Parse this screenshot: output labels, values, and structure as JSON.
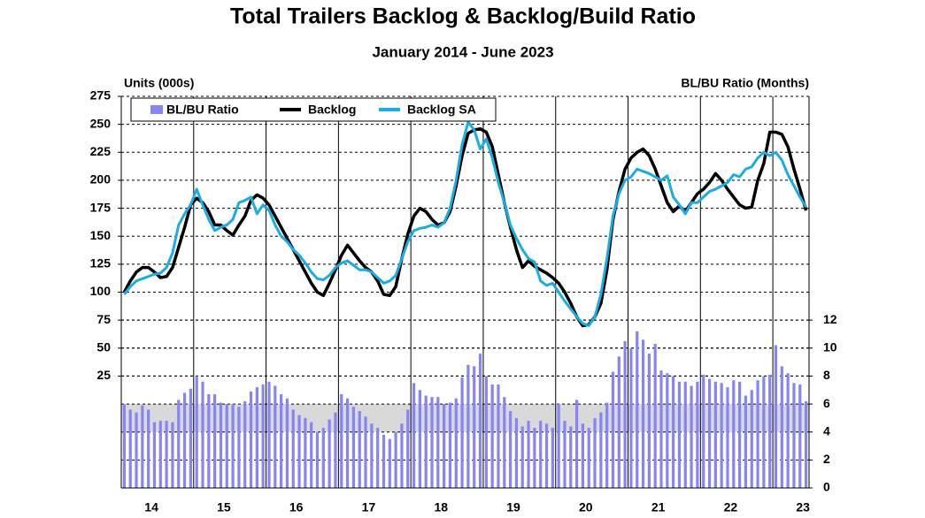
{
  "chart_data": {
    "type": "combo",
    "title": "Total Trailers Backlog & Backlog/Build Ratio",
    "subtitle": "January 2014 - June 2023",
    "y_label": "Units (000s)",
    "y2_label": "BL/BU Ratio (Months)",
    "categories": [
      null,
      null,
      null,
      null,
      null,
      "14",
      null,
      null,
      null,
      null,
      null,
      null,
      null,
      null,
      null,
      null,
      null,
      "15",
      null,
      null,
      null,
      null,
      null,
      null,
      null,
      null,
      null,
      null,
      null,
      "16",
      null,
      null,
      null,
      null,
      null,
      null,
      null,
      null,
      null,
      null,
      null,
      "17",
      null,
      null,
      null,
      null,
      null,
      null,
      null,
      null,
      null,
      null,
      null,
      "18",
      null,
      null,
      null,
      null,
      null,
      null,
      null,
      null,
      null,
      null,
      null,
      "19",
      null,
      null,
      null,
      null,
      null,
      null,
      null,
      null,
      null,
      null,
      null,
      "20",
      null,
      null,
      null,
      null,
      null,
      null,
      null,
      null,
      null,
      null,
      null,
      "21",
      null,
      null,
      null,
      null,
      null,
      null,
      null,
      null,
      null,
      null,
      null,
      "22",
      null,
      null,
      null,
      null,
      null,
      null,
      null,
      null,
      null,
      null,
      null,
      "23"
    ],
    "ylim": [
      -75,
      275
    ],
    "yticks": [
      25,
      50,
      75,
      100,
      125,
      150,
      175,
      200,
      225,
      250,
      275
    ],
    "y2lim": [
      0,
      28
    ],
    "y2ticks": [
      0,
      2,
      4,
      6,
      8,
      10,
      12
    ],
    "y2band": [
      4,
      6
    ],
    "band_color": "#d9d9d9",
    "grid": true,
    "legend": "top-left",
    "series": [
      {
        "name": "BL/BU Ratio",
        "type": "bar",
        "axis": "y2",
        "color": "#8585f5",
        "values": [
          6.0,
          5.6,
          5.4,
          5.9,
          5.6,
          4.7,
          4.8,
          4.8,
          4.7,
          6.3,
          6.8,
          7.1,
          8.0,
          7.6,
          6.7,
          6.7,
          6.1,
          6.0,
          6.0,
          5.8,
          6.2,
          6.9,
          7.2,
          7.4,
          7.6,
          7.3,
          6.7,
          6.4,
          5.6,
          5.2,
          5.0,
          4.7,
          4.0,
          4.3,
          4.9,
          5.4,
          6.7,
          6.4,
          5.8,
          5.5,
          5.1,
          4.6,
          4.3,
          3.8,
          3.5,
          4.0,
          4.6,
          5.6,
          7.5,
          7.0,
          6.6,
          6.5,
          6.5,
          6.0,
          6.1,
          6.4,
          7.9,
          8.8,
          8.7,
          9.6,
          8.0,
          7.4,
          7.4,
          6.5,
          5.5,
          5.0,
          4.4,
          4.8,
          4.3,
          4.8,
          4.6,
          4.3,
          6.0,
          4.8,
          4.4,
          6.3,
          4.6,
          4.3,
          5.0,
          5.4,
          6.1,
          8.3,
          9.4,
          10.5,
          10.0,
          11.2,
          10.6,
          9.6,
          10.3,
          8.4,
          8.2,
          8.0,
          7.6,
          7.6,
          7.3,
          7.6,
          8.1,
          7.8,
          7.6,
          7.5,
          7.2,
          7.7,
          7.6,
          6.6,
          7.0,
          7.7,
          8.0,
          8.1,
          10.2,
          8.7,
          8.2,
          7.5,
          7.4,
          6.2
        ]
      },
      {
        "name": "Backlog",
        "type": "line",
        "color": "#000000",
        "values": [
          100,
          110,
          118,
          122,
          122,
          118,
          113,
          114,
          122,
          140,
          158,
          178,
          184,
          180,
          172,
          160,
          160,
          155,
          151,
          160,
          168,
          182,
          187,
          184,
          178,
          168,
          158,
          148,
          138,
          128,
          118,
          108,
          100,
          97,
          108,
          120,
          133,
          142,
          135,
          128,
          122,
          118,
          110,
          98,
          97,
          105,
          130,
          152,
          168,
          175,
          172,
          165,
          160,
          162,
          172,
          195,
          222,
          242,
          245,
          246,
          243,
          230,
          205,
          180,
          158,
          138,
          122,
          128,
          123,
          120,
          117,
          113,
          108,
          100,
          90,
          78,
          70,
          71,
          78,
          90,
          120,
          165,
          190,
          210,
          220,
          225,
          228,
          222,
          210,
          195,
          180,
          172,
          177,
          172,
          180,
          188,
          192,
          198,
          206,
          200,
          192,
          185,
          178,
          175,
          176,
          200,
          215,
          243,
          243,
          241,
          230,
          210,
          192,
          173
        ]
      },
      {
        "name": "Backlog SA",
        "type": "line",
        "color": "#19ade6",
        "values": [
          98,
          105,
          110,
          112,
          114,
          116,
          117,
          122,
          135,
          160,
          170,
          178,
          192,
          178,
          165,
          155,
          158,
          160,
          165,
          180,
          182,
          185,
          170,
          178,
          173,
          160,
          150,
          145,
          138,
          133,
          126,
          118,
          112,
          111,
          115,
          122,
          126,
          128,
          124,
          120,
          120,
          118,
          113,
          108,
          110,
          115,
          130,
          145,
          155,
          157,
          158,
          160,
          158,
          162,
          175,
          200,
          232,
          252,
          245,
          228,
          237,
          220,
          198,
          180,
          160,
          148,
          138,
          130,
          127,
          110,
          106,
          108,
          100,
          92,
          85,
          78,
          72,
          70,
          78,
          98,
          130,
          168,
          188,
          200,
          203,
          210,
          208,
          206,
          203,
          200,
          204,
          185,
          178,
          170,
          180,
          180,
          185,
          190,
          192,
          195,
          198,
          205,
          203,
          210,
          212,
          220,
          225,
          222,
          225,
          218,
          205,
          195,
          185,
          176
        ]
      }
    ]
  }
}
